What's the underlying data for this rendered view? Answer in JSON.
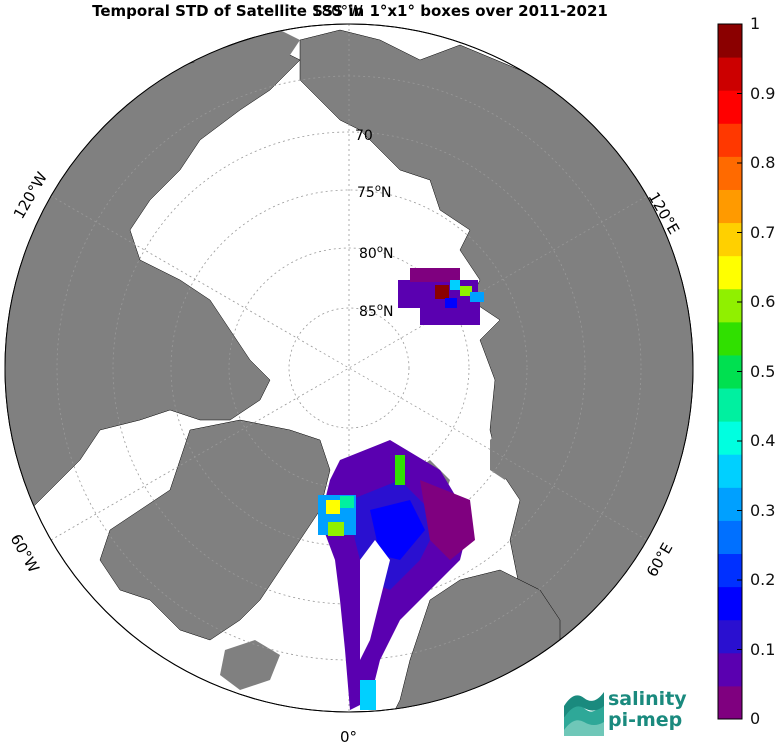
{
  "title": "Temporal STD of Satellite SSS in 1°x1° boxes over 2011-2021",
  "map": {
    "projection": "north polar stereographic",
    "latitude_labels": [
      "70",
      "75",
      "80",
      "85"
    ],
    "latitude_label_suffix": "N",
    "longitude_labels": {
      "top": "180°W",
      "bottom": "0°",
      "upper_left": "120°W",
      "upper_right": "120°E",
      "lower_left": "60°W",
      "lower_right": "60°E"
    },
    "land_color": "#808080",
    "ocean_color": "#ffffff"
  },
  "colorbar": {
    "ticks": [
      "1",
      "0.9",
      "0.8",
      "0.7",
      "0.6",
      "0.5",
      "0.4",
      "0.3",
      "0.2",
      "0.1",
      "0"
    ],
    "range": [
      0,
      1
    ],
    "colors": [
      "#7f007f",
      "#5a00b0",
      "#2a10d0",
      "#0000ff",
      "#0030ff",
      "#0070ff",
      "#00a0ff",
      "#00d0ff",
      "#00ffe0",
      "#00f0a0",
      "#00e050",
      "#30e000",
      "#90f000",
      "#ffff00",
      "#ffd000",
      "#ff9a00",
      "#ff6a00",
      "#ff3800",
      "#ff0000",
      "#cc0000",
      "#8b0000"
    ]
  },
  "logo": {
    "line1": "salinity",
    "line2": "pi-mep"
  }
}
